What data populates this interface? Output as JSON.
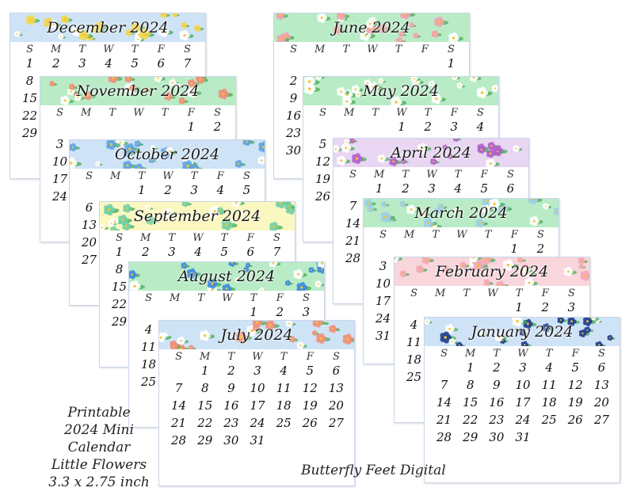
{
  "dow": [
    "S",
    "M",
    "T",
    "W",
    "T",
    "F",
    "S"
  ],
  "caption_lines": [
    "Printable",
    "2024 Mini Calendar",
    "Little Flowers",
    "3.3 x 2.75 inch"
  ],
  "brand": "Butterfly Feet Digital",
  "colors": {
    "blue_bg": "#cfe3f7",
    "green_bg": "#b9ecc6",
    "yellow_bg": "#fbf7c0",
    "purple_bg": "#e8d6f3",
    "pink_bg": "#f8d6dc",
    "card_border": "#c9d6ea"
  },
  "calendars": [
    {
      "id": "december",
      "title": "December 2024",
      "bg": "#cfe3f7",
      "flower": "#f2d64b",
      "offset": 0,
      "days": 31
    },
    {
      "id": "november",
      "title": "November 2024",
      "bg": "#b9ecc6",
      "flower": "#f08e7a",
      "offset": 5,
      "days": 30
    },
    {
      "id": "october",
      "title": "October 2024",
      "bg": "#cfe3f7",
      "flower": "#5da3e0",
      "offset": 2,
      "days": 31
    },
    {
      "id": "september",
      "title": "September 2024",
      "bg": "#fbf7c0",
      "flower": "#6fd0a8",
      "offset": 0,
      "days": 30
    },
    {
      "id": "august",
      "title": "August 2024",
      "bg": "#b9ecc6",
      "flower": "#3c8be0",
      "offset": 4,
      "days": 31
    },
    {
      "id": "july",
      "title": "July 2024",
      "bg": "#cfe3f7",
      "flower": "#f08e7a",
      "offset": 1,
      "days": 31
    },
    {
      "id": "june",
      "title": "June 2024",
      "bg": "#b9ecc6",
      "flower": "#f2a0b0",
      "offset": 6,
      "days": 30
    },
    {
      "id": "may",
      "title": "May 2024",
      "bg": "#b9ecc6",
      "flower": "#ffffff",
      "offset": 3,
      "days": 31
    },
    {
      "id": "april",
      "title": "April 2024",
      "bg": "#e8d6f3",
      "flower": "#b160c9",
      "offset": 1,
      "days": 30
    },
    {
      "id": "march",
      "title": "March 2024",
      "bg": "#b9ecc6",
      "flower": "#9ccfe8",
      "offset": 5,
      "days": 31
    },
    {
      "id": "february",
      "title": "February 2024",
      "bg": "#f8d6dc",
      "flower": "#f4a6b6",
      "offset": 4,
      "days": 29
    },
    {
      "id": "january",
      "title": "January 2024",
      "bg": "#cfe3f7",
      "flower": "#1f3d8c",
      "offset": 1,
      "days": 31
    }
  ]
}
